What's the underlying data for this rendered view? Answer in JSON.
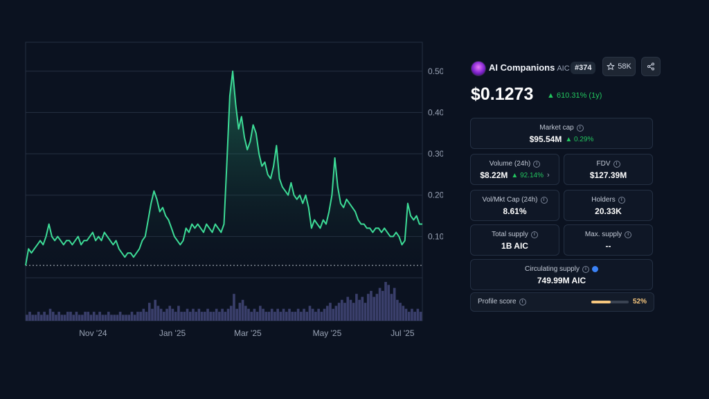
{
  "chart_data": {
    "type": "line",
    "y_ticks": [
      "0.50",
      "0.40",
      "0.30",
      "0.20",
      "0.10"
    ],
    "y_tick_values": [
      0.5,
      0.4,
      0.3,
      0.2,
      0.1
    ],
    "ylim": [
      0.0,
      0.57
    ],
    "x_ticks": [
      "Nov '24",
      "Jan '25",
      "Mar '25",
      "May '25",
      "Jul '25"
    ],
    "x_tick_positions": [
      0.17,
      0.37,
      0.56,
      0.76,
      0.95
    ],
    "baseline": 0.03,
    "grid": true,
    "colors": {
      "line": "#3ddc97",
      "fill": "#1f6b52",
      "volume": "#3a3f6b",
      "grid": "#263042"
    },
    "series": [
      {
        "values": [
          0.03,
          0.07,
          0.06,
          0.07,
          0.08,
          0.09,
          0.08,
          0.1,
          0.13,
          0.1,
          0.09,
          0.1,
          0.09,
          0.08,
          0.09,
          0.09,
          0.08,
          0.09,
          0.1,
          0.08,
          0.09,
          0.09,
          0.1,
          0.11,
          0.09,
          0.1,
          0.09,
          0.11,
          0.1,
          0.09,
          0.08,
          0.09,
          0.07,
          0.06,
          0.05,
          0.06,
          0.06,
          0.05,
          0.06,
          0.07,
          0.09,
          0.1,
          0.14,
          0.18,
          0.21,
          0.19,
          0.16,
          0.17,
          0.15,
          0.14,
          0.12,
          0.1,
          0.09,
          0.08,
          0.09,
          0.12,
          0.11,
          0.13,
          0.12,
          0.13,
          0.12,
          0.11,
          0.13,
          0.12,
          0.11,
          0.13,
          0.12,
          0.11,
          0.13,
          0.28,
          0.44,
          0.5,
          0.42,
          0.36,
          0.39,
          0.34,
          0.31,
          0.33,
          0.37,
          0.35,
          0.3,
          0.27,
          0.28,
          0.25,
          0.24,
          0.27,
          0.32,
          0.24,
          0.22,
          0.21,
          0.2,
          0.23,
          0.2,
          0.19,
          0.2,
          0.18,
          0.2,
          0.17,
          0.12,
          0.14,
          0.13,
          0.12,
          0.14,
          0.13,
          0.16,
          0.2,
          0.29,
          0.22,
          0.18,
          0.17,
          0.19,
          0.18,
          0.17,
          0.16,
          0.14,
          0.13,
          0.13,
          0.12,
          0.12,
          0.11,
          0.12,
          0.12,
          0.11,
          0.12,
          0.11,
          0.1,
          0.1,
          0.11,
          0.1,
          0.08,
          0.09,
          0.18,
          0.15,
          0.14,
          0.15,
          0.13,
          0.13
        ]
      },
      {
        "name": "volume",
        "values": [
          2,
          3,
          2,
          2,
          3,
          2,
          3,
          2,
          4,
          3,
          2,
          3,
          2,
          2,
          3,
          3,
          2,
          3,
          2,
          2,
          3,
          3,
          2,
          3,
          2,
          3,
          2,
          2,
          3,
          2,
          2,
          2,
          3,
          2,
          2,
          2,
          3,
          2,
          3,
          3,
          4,
          3,
          6,
          4,
          7,
          5,
          4,
          3,
          4,
          5,
          4,
          3,
          5,
          3,
          3,
          4,
          3,
          4,
          3,
          4,
          3,
          3,
          4,
          3,
          3,
          4,
          3,
          4,
          3,
          4,
          5,
          9,
          4,
          6,
          7,
          5,
          4,
          3,
          4,
          3,
          5,
          4,
          3,
          3,
          4,
          3,
          4,
          3,
          4,
          3,
          4,
          3,
          3,
          4,
          3,
          4,
          3,
          5,
          4,
          3,
          4,
          3,
          4,
          5,
          6,
          4,
          5,
          6,
          7,
          6,
          8,
          7,
          6,
          9,
          7,
          8,
          6,
          9,
          10,
          8,
          9,
          11,
          10,
          13,
          12,
          9,
          11,
          7,
          6,
          5,
          4,
          3,
          4,
          3,
          4,
          3
        ]
      }
    ]
  },
  "coin": {
    "name": "AI Companions",
    "symbol": "AIC",
    "rank": "#374",
    "watchlist_count": "58K",
    "price": "$0.1273",
    "price_change": "610.31% (1y)",
    "icons": [
      "coin-logo-icon",
      "star-icon",
      "share-icon",
      "caret-up-icon",
      "info-icon",
      "verified-icon",
      "chevron-right-icon"
    ]
  },
  "stats": {
    "market_cap": {
      "label": "Market cap",
      "value": "$95.54M",
      "change": "0.29%"
    },
    "volume": {
      "label": "Volume (24h)",
      "value": "$8.22M",
      "change": "92.14%"
    },
    "fdv": {
      "label": "FDV",
      "value": "$127.39M"
    },
    "vol_mkt": {
      "label": "Vol/Mkt Cap (24h)",
      "value": "8.61%"
    },
    "holders": {
      "label": "Holders",
      "value": "20.33K"
    },
    "total_supply": {
      "label": "Total supply",
      "value": "1B AIC"
    },
    "max_supply": {
      "label": "Max. supply",
      "value": "--"
    },
    "circulating": {
      "label": "Circulating supply",
      "value": "749.99M AIC"
    }
  },
  "profile_score": {
    "label": "Profile score",
    "value": "52%",
    "fraction": 0.52
  }
}
